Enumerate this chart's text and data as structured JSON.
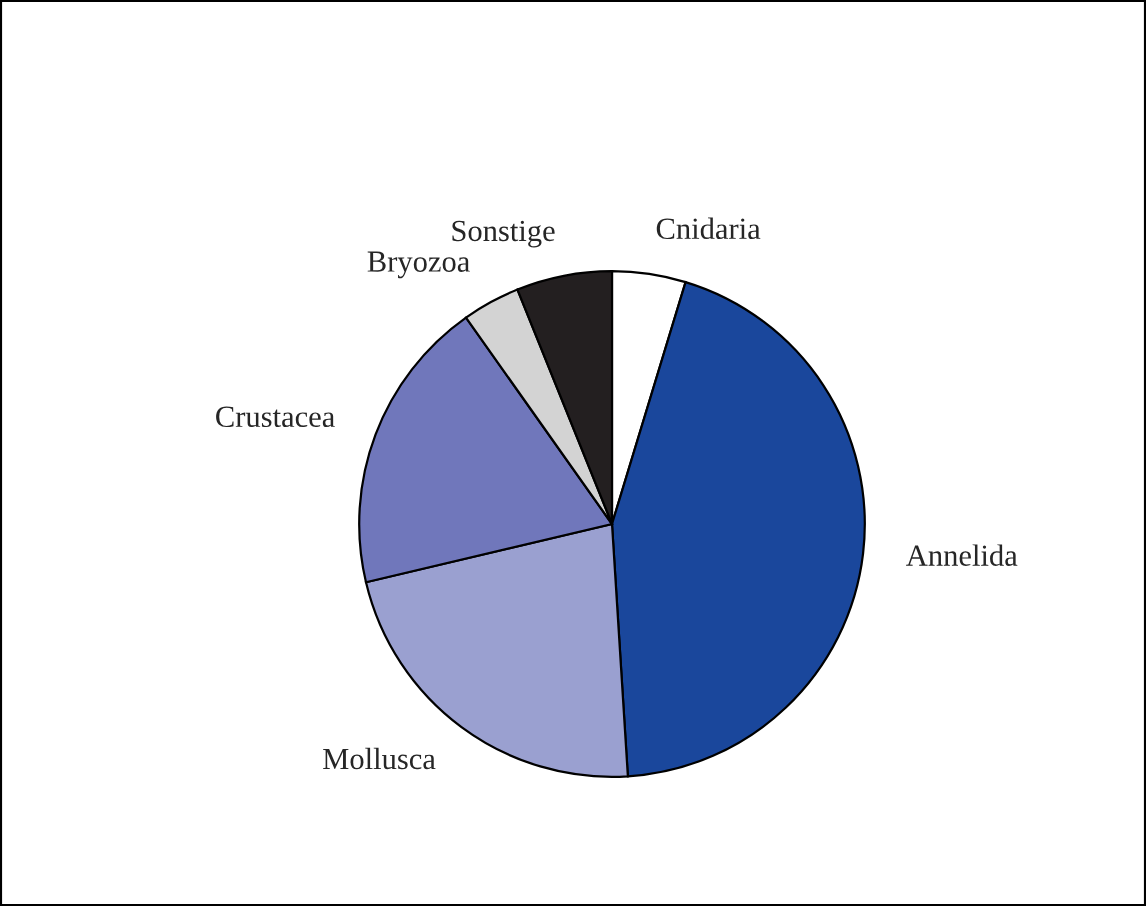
{
  "chart_data": {
    "type": "pie",
    "categories": [
      "Cnidaria",
      "Annelida",
      "Mollusca",
      "Crustacea",
      "Bryozoa",
      "Sonstige"
    ],
    "values": [
      4.7,
      44.3,
      22.3,
      18.9,
      3.7,
      6.1
    ],
    "colors": [
      "#ffffff",
      "#1a479c",
      "#9aa0d0",
      "#7077bb",
      "#d3d3d3",
      "#231f20"
    ]
  }
}
